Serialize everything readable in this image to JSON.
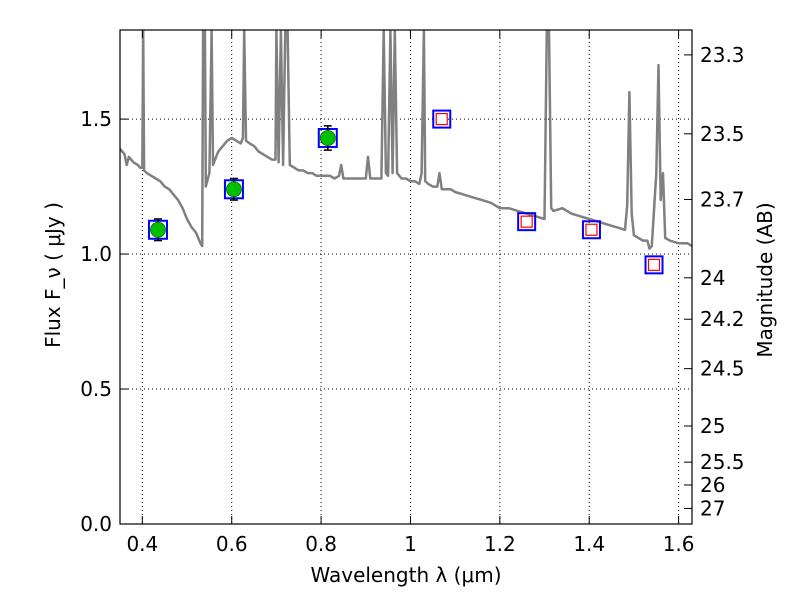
{
  "chart_data": {
    "type": "scatter",
    "xlabel": "Wavelength  λ (μm)",
    "ylabel": "Flux  F_ν  ( μJy )",
    "ylabel_right": "Magnitude (AB)",
    "xlim": [
      0.35,
      1.63
    ],
    "ylim": [
      0.0,
      1.83
    ],
    "x_ticks": [
      {
        "value": 0.4,
        "label": "0.4"
      },
      {
        "value": 0.6,
        "label": "0.6"
      },
      {
        "value": 0.8,
        "label": "0.8"
      },
      {
        "value": 1.0,
        "label": "1"
      },
      {
        "value": 1.2,
        "label": "1.2"
      },
      {
        "value": 1.4,
        "label": "1.4"
      },
      {
        "value": 1.6,
        "label": "1.6"
      }
    ],
    "y_ticks": [
      {
        "value": 0.0,
        "label": "0.0"
      },
      {
        "value": 0.5,
        "label": "0.5"
      },
      {
        "value": 1.0,
        "label": "1.0"
      },
      {
        "value": 1.5,
        "label": "1.5"
      }
    ],
    "right_ticks": [
      {
        "mag": 23.3,
        "label": "23.3"
      },
      {
        "mag": 23.5,
        "label": "23.5"
      },
      {
        "mag": 23.7,
        "label": "23.7"
      },
      {
        "mag": 24.0,
        "label": "24"
      },
      {
        "mag": 24.2,
        "label": "24.2"
      },
      {
        "mag": 24.5,
        "label": "24.5"
      },
      {
        "mag": 25.0,
        "label": "25"
      },
      {
        "mag": 25.5,
        "label": "25.5"
      },
      {
        "mag": 26.0,
        "label": "26"
      },
      {
        "mag": 27.0,
        "label": "27"
      }
    ],
    "grid": true,
    "colors": {
      "model": "#808080",
      "box": "#0000ff",
      "detection": "#00c000",
      "model_point": "#ff0000",
      "errorbar": "#000000"
    },
    "series": [
      {
        "kind": "line",
        "points": [
          [
            0.35,
            1.39
          ],
          [
            0.36,
            1.37
          ],
          [
            0.365,
            1.33
          ],
          [
            0.37,
            1.36
          ],
          [
            0.38,
            1.34
          ],
          [
            0.39,
            1.33
          ],
          [
            0.395,
            1.32
          ],
          [
            0.4,
            1.32
          ],
          [
            0.402,
            1.83
          ],
          [
            0.404,
            1.31
          ],
          [
            0.41,
            1.3
          ],
          [
            0.42,
            1.29
          ],
          [
            0.43,
            1.28
          ],
          [
            0.44,
            1.27
          ],
          [
            0.45,
            1.25
          ],
          [
            0.46,
            1.24
          ],
          [
            0.47,
            1.22
          ],
          [
            0.48,
            1.2
          ],
          [
            0.49,
            1.17
          ],
          [
            0.5,
            1.13
          ],
          [
            0.51,
            1.1
          ],
          [
            0.52,
            1.08
          ],
          [
            0.525,
            1.06
          ],
          [
            0.53,
            1.04
          ],
          [
            0.534,
            1.03
          ],
          [
            0.536,
            1.83
          ],
          [
            0.54,
            1.83
          ],
          [
            0.542,
            1.25
          ],
          [
            0.55,
            1.3
          ],
          [
            0.555,
            1.83
          ],
          [
            0.558,
            1.33
          ],
          [
            0.565,
            1.36
          ],
          [
            0.57,
            1.38
          ],
          [
            0.58,
            1.4
          ],
          [
            0.59,
            1.42
          ],
          [
            0.6,
            1.43
          ],
          [
            0.61,
            1.42
          ],
          [
            0.62,
            1.41
          ],
          [
            0.625,
            1.43
          ],
          [
            0.628,
            1.83
          ],
          [
            0.632,
            1.42
          ],
          [
            0.64,
            1.41
          ],
          [
            0.65,
            1.4
          ],
          [
            0.66,
            1.38
          ],
          [
            0.67,
            1.37
          ],
          [
            0.68,
            1.36
          ],
          [
            0.69,
            1.35
          ],
          [
            0.698,
            1.35
          ],
          [
            0.7,
            1.83
          ],
          [
            0.705,
            1.34
          ],
          [
            0.71,
            1.83
          ],
          [
            0.715,
            1.33
          ],
          [
            0.72,
            1.83
          ],
          [
            0.725,
            1.83
          ],
          [
            0.73,
            1.33
          ],
          [
            0.74,
            1.32
          ],
          [
            0.75,
            1.31
          ],
          [
            0.76,
            1.31
          ],
          [
            0.77,
            1.3
          ],
          [
            0.78,
            1.3
          ],
          [
            0.79,
            1.29
          ],
          [
            0.8,
            1.29
          ],
          [
            0.81,
            1.29
          ],
          [
            0.82,
            1.29
          ],
          [
            0.83,
            1.28
          ],
          [
            0.84,
            1.29
          ],
          [
            0.845,
            1.33
          ],
          [
            0.85,
            1.28
          ],
          [
            0.86,
            1.28
          ],
          [
            0.87,
            1.28
          ],
          [
            0.88,
            1.28
          ],
          [
            0.89,
            1.28
          ],
          [
            0.9,
            1.28
          ],
          [
            0.905,
            1.36
          ],
          [
            0.91,
            1.28
          ],
          [
            0.92,
            1.28
          ],
          [
            0.93,
            1.28
          ],
          [
            0.935,
            1.28
          ],
          [
            0.94,
            1.83
          ],
          [
            0.945,
            1.3
          ],
          [
            0.95,
            1.29
          ],
          [
            0.955,
            1.83
          ],
          [
            0.96,
            1.3
          ],
          [
            0.965,
            1.83
          ],
          [
            0.97,
            1.3
          ],
          [
            0.98,
            1.28
          ],
          [
            0.99,
            1.28
          ],
          [
            1.0,
            1.27
          ],
          [
            1.01,
            1.27
          ],
          [
            1.02,
            1.26
          ],
          [
            1.025,
            1.3
          ],
          [
            1.03,
            1.83
          ],
          [
            1.033,
            1.27
          ],
          [
            1.04,
            1.26
          ],
          [
            1.05,
            1.25
          ],
          [
            1.06,
            1.25
          ],
          [
            1.065,
            1.3
          ],
          [
            1.07,
            1.24
          ],
          [
            1.08,
            1.24
          ],
          [
            1.09,
            1.24
          ],
          [
            1.1,
            1.23
          ],
          [
            1.12,
            1.22
          ],
          [
            1.14,
            1.21
          ],
          [
            1.16,
            1.2
          ],
          [
            1.18,
            1.19
          ],
          [
            1.2,
            1.17
          ],
          [
            1.22,
            1.17
          ],
          [
            1.24,
            1.16
          ],
          [
            1.26,
            1.15
          ],
          [
            1.28,
            1.14
          ],
          [
            1.3,
            1.13
          ],
          [
            1.305,
            1.83
          ],
          [
            1.31,
            1.83
          ],
          [
            1.315,
            1.17
          ],
          [
            1.32,
            1.16
          ],
          [
            1.34,
            1.17
          ],
          [
            1.36,
            1.15
          ],
          [
            1.38,
            1.14
          ],
          [
            1.4,
            1.13
          ],
          [
            1.42,
            1.12
          ],
          [
            1.44,
            1.11
          ],
          [
            1.46,
            1.1
          ],
          [
            1.48,
            1.09
          ],
          [
            1.485,
            1.18
          ],
          [
            1.49,
            1.6
          ],
          [
            1.495,
            1.15
          ],
          [
            1.5,
            1.07
          ],
          [
            1.51,
            1.06
          ],
          [
            1.52,
            1.05
          ],
          [
            1.53,
            1.05
          ],
          [
            1.535,
            1.02
          ],
          [
            1.54,
            1.03
          ],
          [
            1.55,
            1.3
          ],
          [
            1.555,
            1.7
          ],
          [
            1.56,
            1.2
          ],
          [
            1.565,
            1.3
          ],
          [
            1.57,
            1.06
          ],
          [
            1.58,
            1.05
          ],
          [
            1.6,
            1.04
          ],
          [
            1.62,
            1.04
          ],
          [
            1.63,
            1.03
          ]
        ]
      },
      {
        "kind": "detections",
        "points": [
          {
            "x": 0.435,
            "y": 1.09,
            "yerr": 0.04
          },
          {
            "x": 0.605,
            "y": 1.24,
            "yerr": 0.04
          },
          {
            "x": 0.815,
            "y": 1.43,
            "yerr": 0.045
          }
        ]
      },
      {
        "kind": "model_points",
        "points": [
          {
            "x": 1.07,
            "y": 1.5
          },
          {
            "x": 1.26,
            "y": 1.12
          },
          {
            "x": 1.405,
            "y": 1.09
          },
          {
            "x": 1.545,
            "y": 0.96
          }
        ]
      }
    ]
  }
}
